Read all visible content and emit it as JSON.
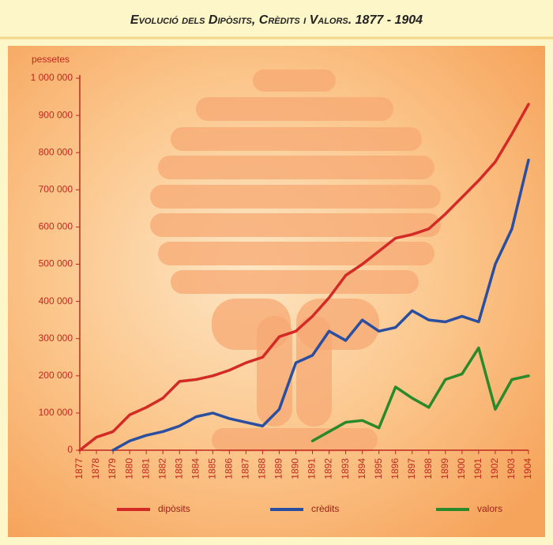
{
  "chart_data": {
    "type": "line",
    "title": "Evolució dels Dipòsits, Crèdits i Valors. 1877 - 1904",
    "y_label": "pessetes",
    "categories": [
      "1877",
      "1878",
      "1879",
      "1880",
      "1881",
      "1882",
      "1883",
      "1884",
      "1885",
      "1886",
      "1887",
      "1888",
      "1889",
      "1890",
      "1891",
      "1892",
      "1893",
      "1894",
      "1895",
      "1896",
      "1897",
      "1898",
      "1899",
      "1900",
      "1901",
      "1902",
      "1903",
      "1904"
    ],
    "series": [
      {
        "name": "dipòsits",
        "color": "#d42a26",
        "values": [
          0,
          35000,
          50000,
          95000,
          115000,
          140000,
          185000,
          190000,
          200000,
          215000,
          235000,
          250000,
          305000,
          320000,
          360000,
          410000,
          470000,
          500000,
          535000,
          570000,
          580000,
          595000,
          635000,
          680000,
          725000,
          775000,
          850000,
          930000
        ]
      },
      {
        "name": "crèdits",
        "color": "#2a4ea0",
        "values": [
          null,
          null,
          0,
          25000,
          40000,
          50000,
          65000,
          90000,
          100000,
          85000,
          75000,
          65000,
          110000,
          235000,
          255000,
          320000,
          295000,
          350000,
          320000,
          330000,
          375000,
          350000,
          345000,
          360000,
          345000,
          500000,
          595000,
          780000
        ]
      },
      {
        "name": "valors",
        "color": "#2a8a2a",
        "values": [
          null,
          null,
          null,
          null,
          null,
          null,
          null,
          null,
          null,
          null,
          null,
          null,
          null,
          null,
          25000,
          50000,
          75000,
          80000,
          60000,
          170000,
          140000,
          115000,
          190000,
          205000,
          275000,
          110000,
          190000,
          200000
        ]
      }
    ],
    "ylim": [
      0,
      1000000
    ],
    "yticks": [
      0,
      {
        "value": 100000,
        "label": "100 000"
      },
      {
        "value": 200000,
        "label": "200 000"
      },
      {
        "value": 300000,
        "label": "300 000"
      },
      {
        "value": 400000,
        "label": "400 000"
      },
      {
        "value": 500000,
        "label": "500 000"
      },
      {
        "value": 600000,
        "label": "600 000"
      },
      {
        "value": 700000,
        "label": "700 000"
      },
      {
        "value": 800000,
        "label": "800 000"
      },
      {
        "value": 900000,
        "label": "900 000"
      },
      {
        "value": 1000000,
        "label": "1 000 000"
      }
    ],
    "grid": false
  }
}
